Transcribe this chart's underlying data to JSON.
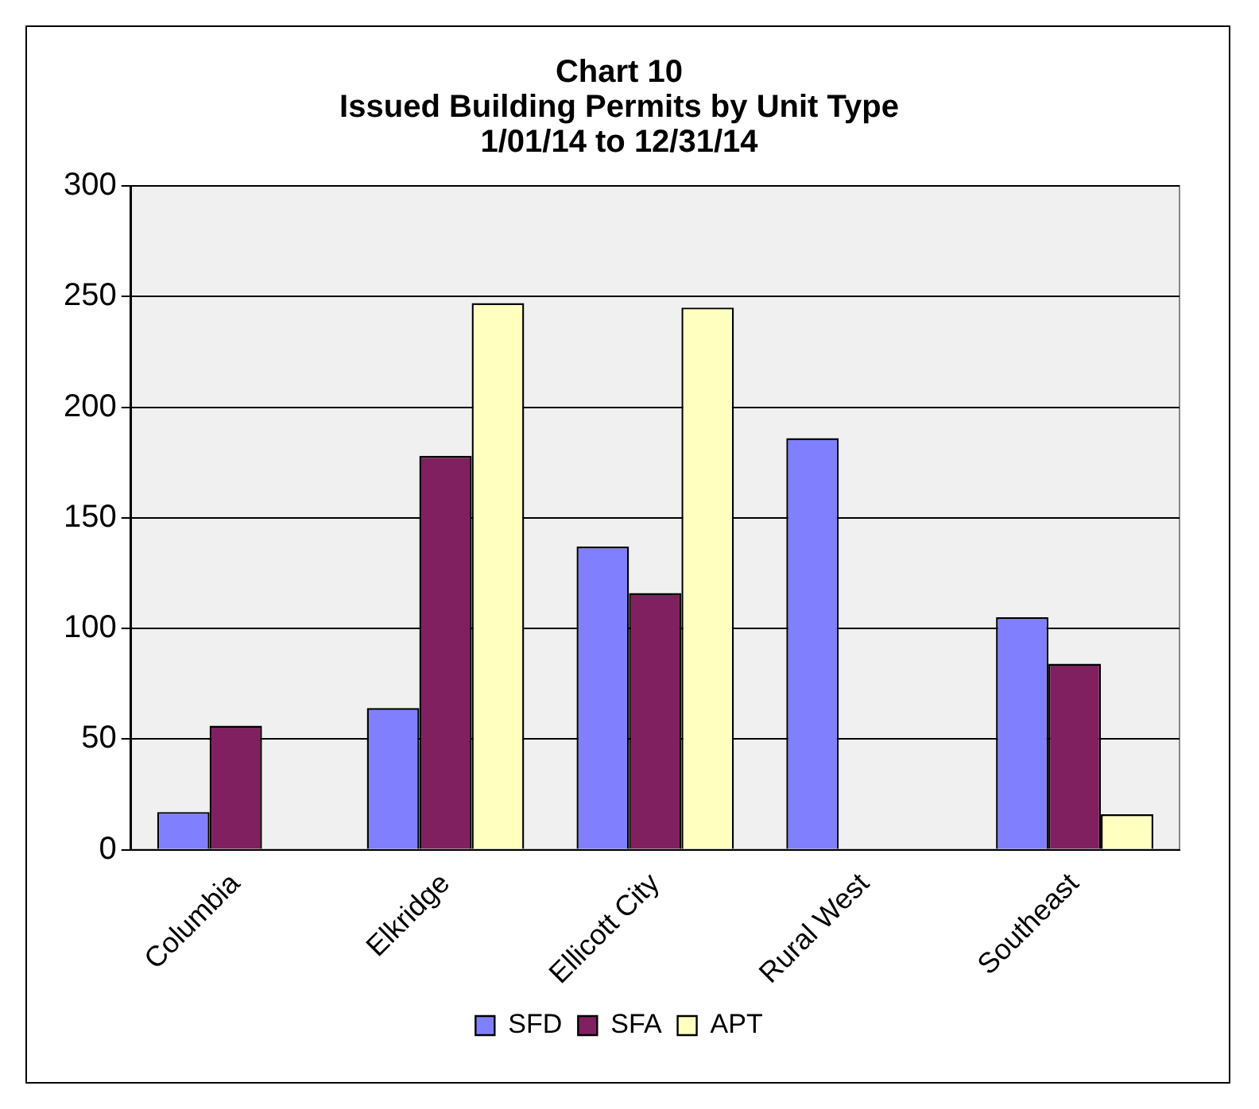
{
  "chart_data": {
    "type": "bar",
    "title": "Chart 10\nIssued Building Permits by Unit Type\n1/01/14 to 12/31/14",
    "categories": [
      "Columbia",
      "Elkridge",
      "Ellicott City",
      "Rural West",
      "Southeast"
    ],
    "series": [
      {
        "name": "SFD",
        "color": "#8080ff",
        "values": [
          17,
          64,
          137,
          186,
          105
        ]
      },
      {
        "name": "SFA",
        "color": "#802060",
        "values": [
          56,
          178,
          116,
          0,
          84
        ]
      },
      {
        "name": "APT",
        "color": "#ffffc0",
        "values": [
          0,
          247,
          245,
          0,
          16
        ]
      }
    ],
    "ylim": [
      0,
      300
    ],
    "yticks": [
      0,
      50,
      100,
      150,
      200,
      250,
      300
    ],
    "grid": "y",
    "legend": "bottom"
  }
}
